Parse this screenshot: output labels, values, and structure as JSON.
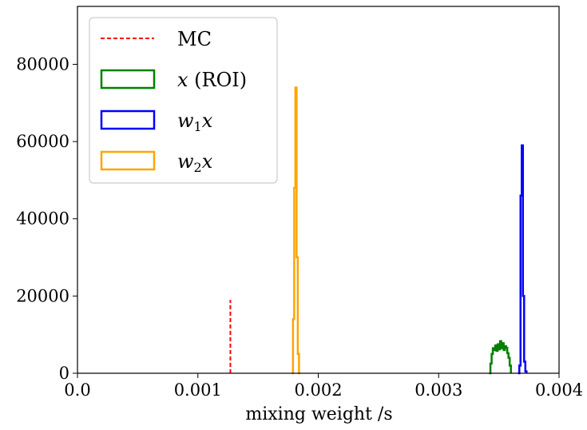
{
  "chart_data": {
    "type": "histogram",
    "xlabel": "mixing weight /s",
    "ylabel": "",
    "xlim": [
      0,
      0.004
    ],
    "ylim": [
      0,
      95000
    ],
    "x_ticks": [
      "0.0",
      "0.001",
      "0.002",
      "0.003",
      "0.004"
    ],
    "y_ticks": [
      "0",
      "20000",
      "40000",
      "60000",
      "80000"
    ],
    "grid": false,
    "legend_position": "top-left",
    "legend": [
      {
        "label": "MC",
        "style": "dashed-line",
        "color": "#ff0000"
      },
      {
        "label_main": "x",
        "label_rest": " (ROI)",
        "style": "box",
        "color": "#008000"
      },
      {
        "label_main": "w",
        "label_sub": "1",
        "label_rest": "x",
        "style": "box",
        "color": "#0000ff"
      },
      {
        "label_main": "w",
        "label_sub": "2",
        "label_rest": "x",
        "style": "box",
        "color": "#ffa500"
      }
    ],
    "series": [
      {
        "name": "MC",
        "kind": "vline",
        "color": "#ff0000",
        "x": 0.00127,
        "y": 19000
      },
      {
        "name": "x (ROI)",
        "kind": "step",
        "color": "#008000",
        "x": [
          0.00342,
          0.00343,
          0.00344,
          0.00345,
          0.00346,
          0.00347,
          0.00348,
          0.00349,
          0.0035,
          0.00351,
          0.00352,
          0.00353,
          0.00354,
          0.00355,
          0.00356,
          0.00357,
          0.00358,
          0.00359,
          0.0036
        ],
        "y": [
          0,
          2500,
          5000,
          6500,
          6000,
          7200,
          5800,
          7500,
          6200,
          8300,
          6500,
          7800,
          6000,
          7000,
          6600,
          5200,
          4000,
          2000,
          0
        ]
      },
      {
        "name": "w1x",
        "kind": "step",
        "color": "#0000ff",
        "x": [
          0.00366,
          0.00367,
          0.00368,
          0.00369,
          0.0037,
          0.00371,
          0.00372,
          0.00373
        ],
        "y": [
          0,
          2000,
          46000,
          59000,
          20000,
          3000,
          500,
          0
        ]
      },
      {
        "name": "w2x",
        "kind": "step",
        "color": "#ffa500",
        "x": [
          0.00178,
          0.00179,
          0.0018,
          0.00181,
          0.00182,
          0.00183,
          0.00184,
          0.00185
        ],
        "y": [
          0,
          14000,
          48000,
          74000,
          30000,
          5000,
          0,
          0
        ]
      }
    ]
  }
}
